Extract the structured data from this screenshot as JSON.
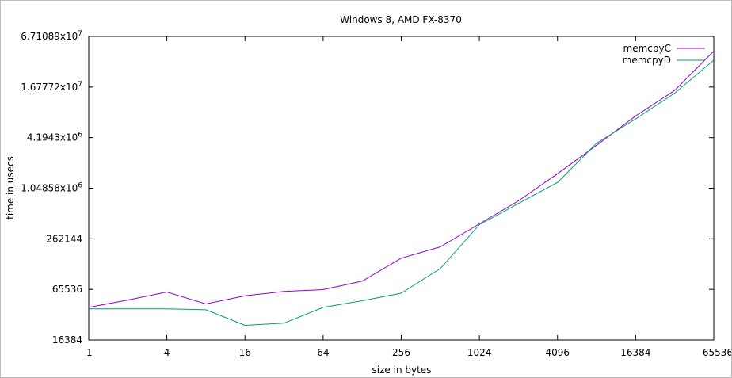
{
  "chart_data": {
    "type": "line",
    "title": "Windows 8, AMD FX-8370",
    "xlabel": "size in bytes",
    "ylabel": "time in usecs",
    "x_scale": "log2",
    "y_scale": "log2",
    "xlim": [
      1,
      65536
    ],
    "ylim": [
      16384,
      67108900
    ],
    "x_ticks": [
      {
        "value": 1,
        "label": "1"
      },
      {
        "value": 4,
        "label": "4"
      },
      {
        "value": 16,
        "label": "16"
      },
      {
        "value": 64,
        "label": "64"
      },
      {
        "value": 256,
        "label": "256"
      },
      {
        "value": 1024,
        "label": "1024"
      },
      {
        "value": 4096,
        "label": "4096"
      },
      {
        "value": 16384,
        "label": "16384"
      },
      {
        "value": 65536,
        "label": "65536"
      }
    ],
    "y_ticks": [
      {
        "value": 16384,
        "label": "16384",
        "sup": ""
      },
      {
        "value": 65536,
        "label": "65536",
        "sup": ""
      },
      {
        "value": 262144,
        "label": "262144",
        "sup": ""
      },
      {
        "value": 1048580,
        "label": "1.04858x10",
        "sup": "6"
      },
      {
        "value": 4194300,
        "label": "4.1943x10",
        "sup": "6"
      },
      {
        "value": 16777200,
        "label": "1.67772x10",
        "sup": "7"
      },
      {
        "value": 67108900,
        "label": "6.71089x10",
        "sup": "7"
      }
    ],
    "legend_position": "top-right",
    "grid": false,
    "x": [
      1,
      2,
      4,
      8,
      16,
      32,
      64,
      128,
      256,
      512,
      1024,
      2048,
      4096,
      8192,
      16384,
      32768,
      65536
    ],
    "series": [
      {
        "name": "memcpyC",
        "color": "#9400d3",
        "values": [
          40000,
          49000,
          61000,
          44000,
          55000,
          62000,
          65000,
          82000,
          154000,
          210000,
          395000,
          740000,
          1560000,
          3400000,
          7600000,
          15300000,
          45000000
        ]
      },
      {
        "name": "memcpyD",
        "color": "#009e73",
        "values": [
          38500,
          38500,
          38500,
          37500,
          24500,
          26000,
          40000,
          48000,
          59000,
          116000,
          385000,
          690000,
          1230000,
          3600000,
          7000000,
          14200000,
          35000000
        ]
      }
    ]
  }
}
